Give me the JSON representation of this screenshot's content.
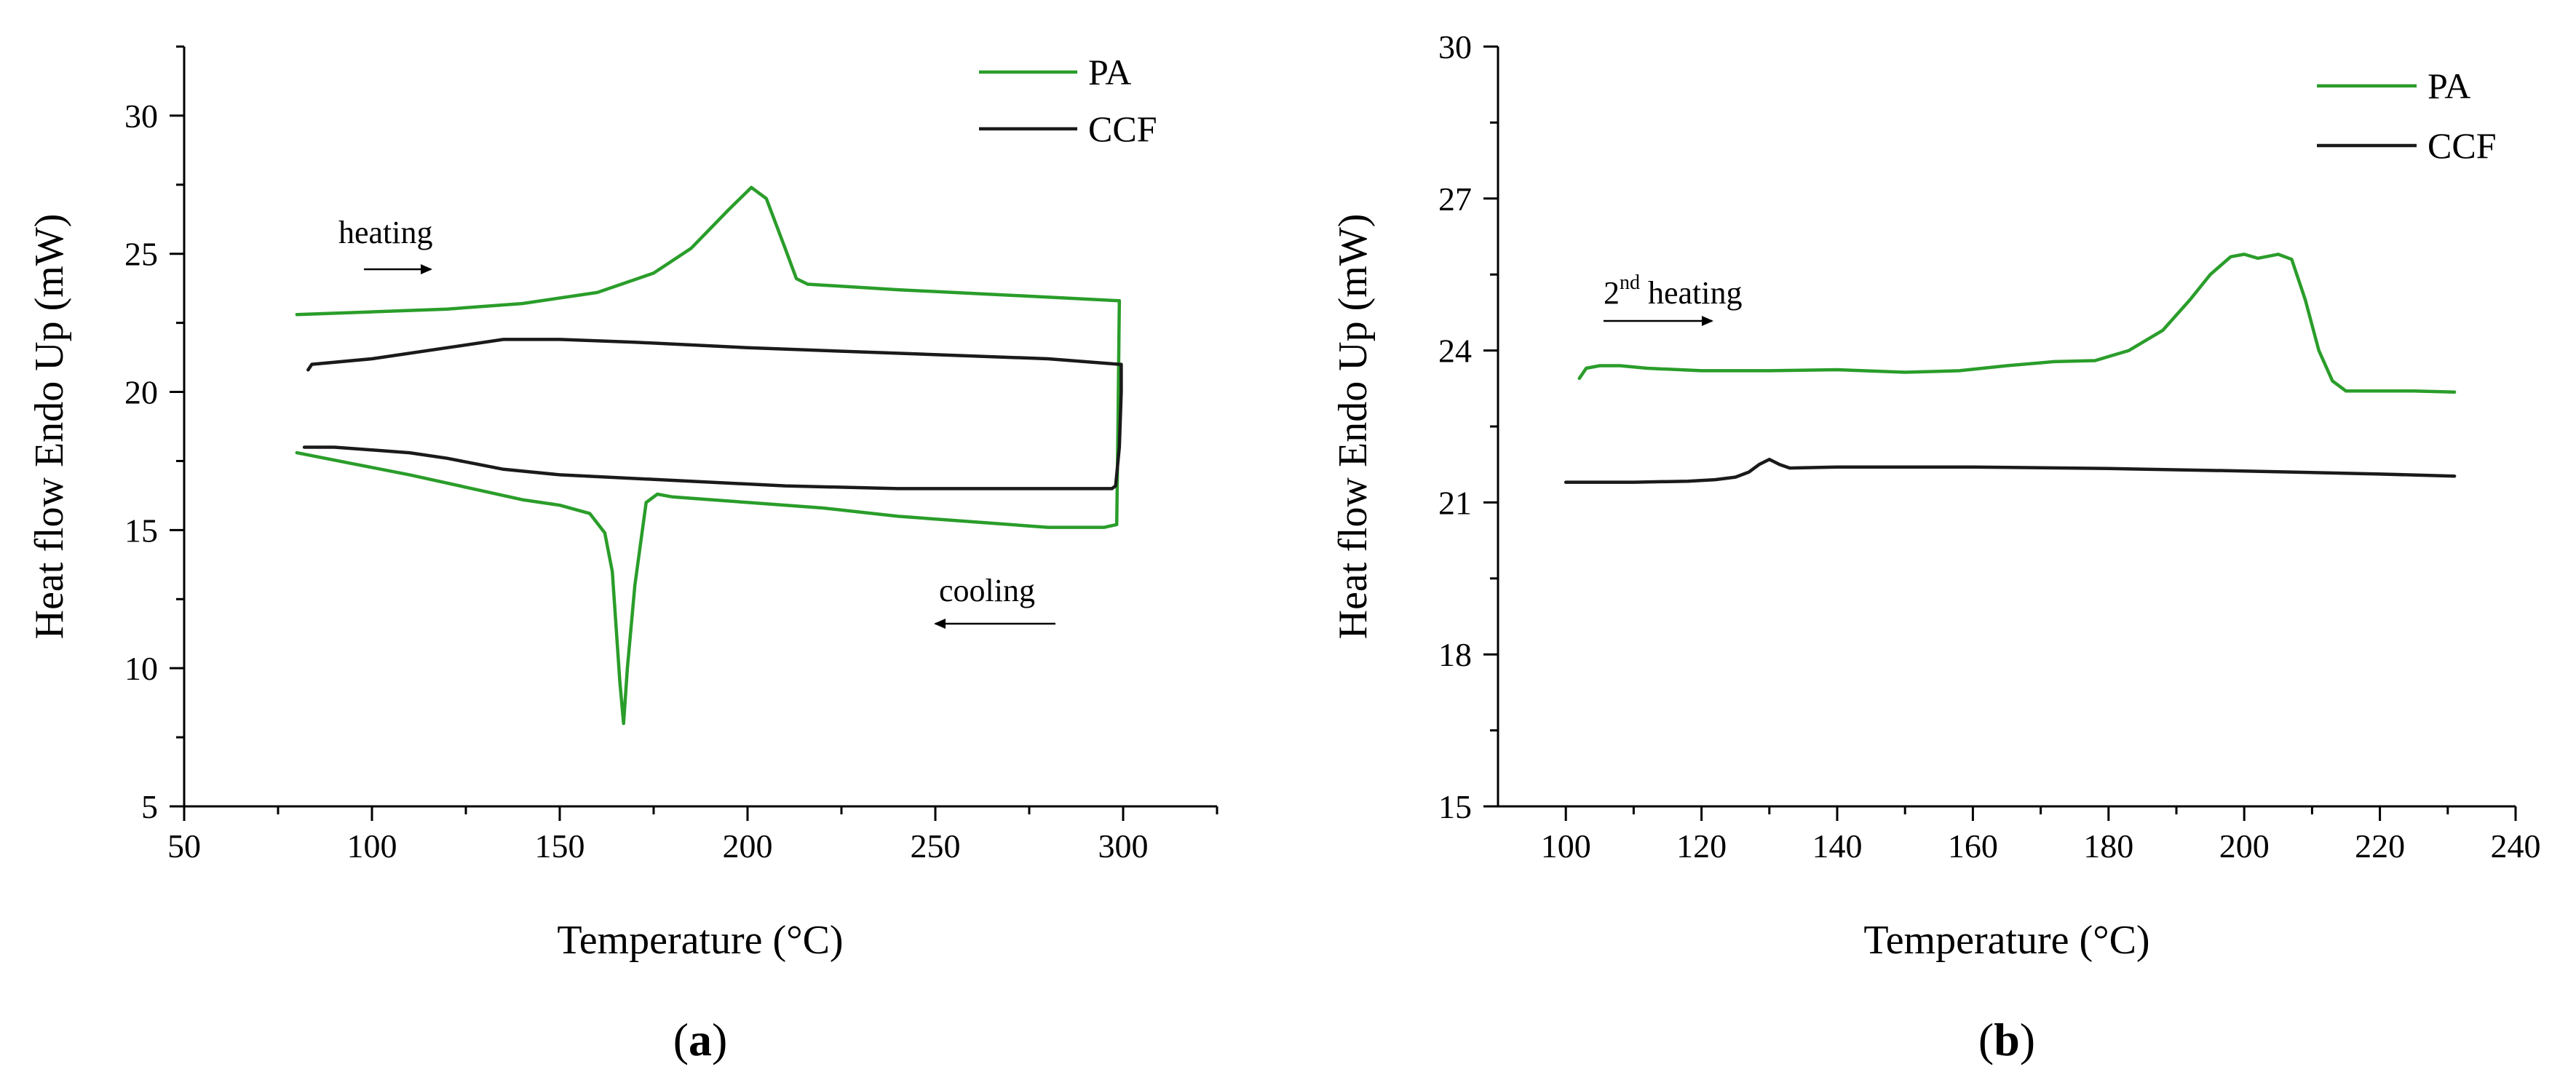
{
  "colors": {
    "PA": "#2a9d2a",
    "CCF": "#1a1a1a"
  },
  "chart_data": [
    {
      "type": "line",
      "panel_label": "a",
      "title": "",
      "xlabel": "Temperature (°C)",
      "ylabel": "Heat flow Endo Up (mW)",
      "xlim": [
        50,
        325
      ],
      "ylim": [
        5,
        32.5
      ],
      "xticks": [
        50,
        100,
        150,
        200,
        250,
        300
      ],
      "yticks": [
        5,
        10,
        15,
        20,
        25,
        30
      ],
      "legend": [
        "PA",
        "CCF"
      ],
      "legend_position": "top-right",
      "annotations": [
        {
          "text": "heating",
          "x": 112,
          "y": 25.5,
          "arrow": "right"
        },
        {
          "text": "cooling",
          "x": 286,
          "y": 13.0,
          "arrow": "left"
        }
      ],
      "series": [
        {
          "name": "PA",
          "points": [
            [
              80,
              22.8
            ],
            [
              100,
              22.9
            ],
            [
              120,
              23.0
            ],
            [
              140,
              23.2
            ],
            [
              160,
              23.6
            ],
            [
              175,
              24.3
            ],
            [
              185,
              25.2
            ],
            [
              195,
              26.6
            ],
            [
              201,
              27.4
            ],
            [
              205,
              27.0
            ],
            [
              210,
              25.2
            ],
            [
              213,
              24.1
            ],
            [
              216,
              23.9
            ],
            [
              240,
              23.7
            ],
            [
              270,
              23.5
            ],
            [
              299,
              23.3
            ],
            [
              299,
              23.3
            ],
            [
              298.6,
              18.5
            ],
            [
              298.3,
              15.2
            ],
            [
              295,
              15.1
            ],
            [
              280,
              15.1
            ],
            [
              260,
              15.3
            ],
            [
              240,
              15.5
            ],
            [
              220,
              15.8
            ],
            [
              200,
              16.0
            ],
            [
              180,
              16.2
            ],
            [
              176,
              16.3
            ],
            [
              173,
              16.0
            ],
            [
              170,
              13.0
            ],
            [
              168,
              10.0
            ],
            [
              167,
              8.0
            ],
            [
              166,
              9.5
            ],
            [
              164,
              13.5
            ],
            [
              162,
              14.9
            ],
            [
              158,
              15.6
            ],
            [
              150,
              15.9
            ],
            [
              140,
              16.1
            ],
            [
              130,
              16.4
            ],
            [
              110,
              17.0
            ],
            [
              95,
              17.4
            ],
            [
              80,
              17.8
            ]
          ]
        },
        {
          "name": "CCF",
          "points": [
            [
              83,
              20.8
            ],
            [
              84,
              21.0
            ],
            [
              100,
              21.2
            ],
            [
              120,
              21.6
            ],
            [
              135,
              21.9
            ],
            [
              150,
              21.9
            ],
            [
              170,
              21.8
            ],
            [
              200,
              21.6
            ],
            [
              240,
              21.4
            ],
            [
              280,
              21.2
            ],
            [
              299,
              21.0
            ],
            [
              299.5,
              21.0
            ],
            [
              299.5,
              20.0
            ],
            [
              299,
              18.0
            ],
            [
              298,
              16.6
            ],
            [
              297,
              16.5
            ],
            [
              270,
              16.5
            ],
            [
              240,
              16.5
            ],
            [
              210,
              16.6
            ],
            [
              180,
              16.8
            ],
            [
              150,
              17.0
            ],
            [
              135,
              17.2
            ],
            [
              120,
              17.6
            ],
            [
              110,
              17.8
            ],
            [
              100,
              17.9
            ],
            [
              90,
              18.0
            ],
            [
              82,
              18.0
            ]
          ]
        }
      ]
    },
    {
      "type": "line",
      "panel_label": "b",
      "title": "",
      "xlabel": "Temperature (°C)",
      "ylabel": "Heat flow Endo Up (mW)",
      "xlim": [
        90,
        240
      ],
      "ylim": [
        15,
        30
      ],
      "xticks": [
        100,
        120,
        140,
        160,
        180,
        200,
        220,
        240
      ],
      "yticks": [
        15,
        18,
        21,
        24,
        27,
        30
      ],
      "legend": [
        "PA",
        "CCF"
      ],
      "legend_position": "top-right",
      "annotations": [
        {
          "text": "2",
          "sup": "nd",
          "rest": " heating",
          "x": 102.5,
          "y": 24.8,
          "arrow": "right"
        }
      ],
      "series": [
        {
          "name": "PA",
          "points": [
            [
              102,
              23.45
            ],
            [
              103,
              23.65
            ],
            [
              105,
              23.7
            ],
            [
              108,
              23.7
            ],
            [
              112,
              23.65
            ],
            [
              120,
              23.6
            ],
            [
              130,
              23.6
            ],
            [
              140,
              23.62
            ],
            [
              150,
              23.57
            ],
            [
              158,
              23.6
            ],
            [
              165,
              23.7
            ],
            [
              172,
              23.78
            ],
            [
              178,
              23.8
            ],
            [
              183,
              24.0
            ],
            [
              188,
              24.4
            ],
            [
              192,
              25.0
            ],
            [
              195,
              25.5
            ],
            [
              198,
              25.85
            ],
            [
              200,
              25.9
            ],
            [
              202,
              25.82
            ],
            [
              205,
              25.9
            ],
            [
              207,
              25.8
            ],
            [
              209,
              25.0
            ],
            [
              211,
              24.0
            ],
            [
              213,
              23.4
            ],
            [
              215,
              23.2
            ],
            [
              220,
              23.2
            ],
            [
              225,
              23.2
            ],
            [
              231,
              23.18
            ]
          ]
        },
        {
          "name": "CCF",
          "points": [
            [
              100,
              21.4
            ],
            [
              110,
              21.4
            ],
            [
              118,
              21.42
            ],
            [
              122,
              21.45
            ],
            [
              125,
              21.5
            ],
            [
              127,
              21.6
            ],
            [
              128.5,
              21.75
            ],
            [
              130,
              21.85
            ],
            [
              131.5,
              21.75
            ],
            [
              133,
              21.68
            ],
            [
              140,
              21.7
            ],
            [
              160,
              21.7
            ],
            [
              180,
              21.67
            ],
            [
              200,
              21.62
            ],
            [
              220,
              21.56
            ],
            [
              231,
              21.52
            ]
          ]
        }
      ]
    }
  ]
}
